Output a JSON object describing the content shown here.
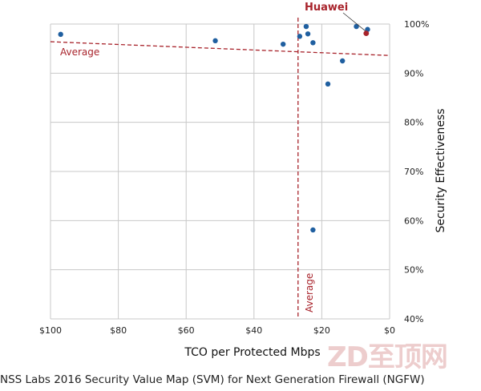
{
  "chart_data": {
    "type": "scatter",
    "title": "NSS Labs 2016 Security Value Map (SVM) for Next Generation Firewall (NGFW)",
    "xlabel": "TCO per Protected Mbps",
    "ylabel": "Security Effectiveness",
    "xlim": [
      100,
      0
    ],
    "ylim": [
      40,
      100
    ],
    "x_ticks": [
      "$100",
      "$80",
      "$60",
      "$40",
      "$20",
      "$0"
    ],
    "x_tick_values": [
      100,
      80,
      60,
      40,
      20,
      0
    ],
    "y_ticks": [
      "100%",
      "90%",
      "80%",
      "70%",
      "60%",
      "50%",
      "40%"
    ],
    "y_tick_values": [
      100,
      90,
      80,
      70,
      60,
      50,
      40
    ],
    "grid": true,
    "points": [
      {
        "x": 97,
        "y": 97.9
      },
      {
        "x": 51.4,
        "y": 96.6
      },
      {
        "x": 31.4,
        "y": 95.9
      },
      {
        "x": 26.5,
        "y": 97.5
      },
      {
        "x": 24.6,
        "y": 99.5
      },
      {
        "x": 24.1,
        "y": 98
      },
      {
        "x": 22.6,
        "y": 96.2
      },
      {
        "x": 22.6,
        "y": 58.1
      },
      {
        "x": 18.2,
        "y": 87.8
      },
      {
        "x": 13.9,
        "y": 92.5
      },
      {
        "x": 9.8,
        "y": 99.5
      },
      {
        "x": 6.5,
        "y": 98.9
      }
    ],
    "highlight": {
      "label": "Huawei",
      "x": 6.9,
      "y": 98.1,
      "color": "#a8232b"
    },
    "point_color": "#1f5fa0",
    "average_x": {
      "label": "Average",
      "value": 27
    },
    "average_y": {
      "label": "Average",
      "from": 96.4,
      "to": 93.6
    },
    "watermark": "ZD至顶网"
  }
}
